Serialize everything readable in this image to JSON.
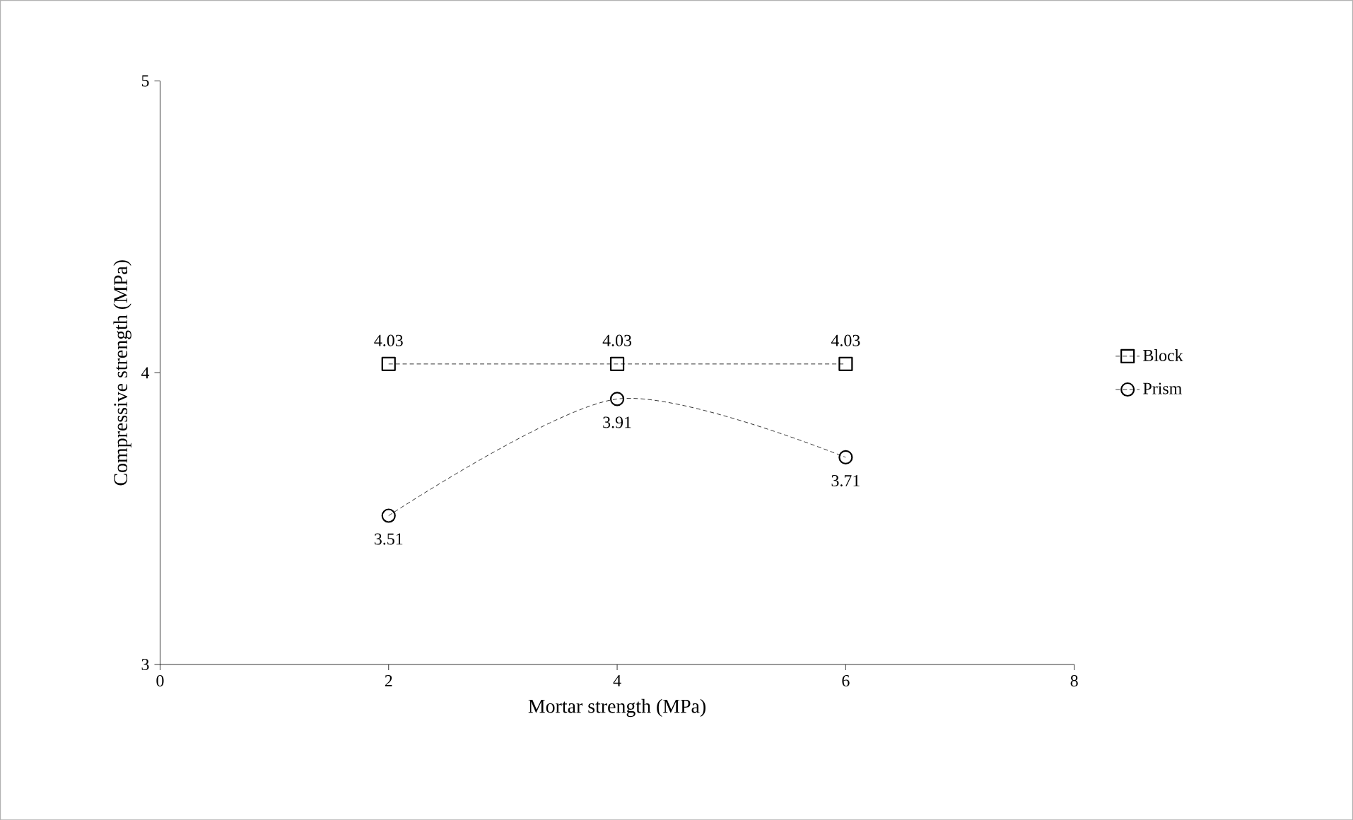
{
  "chart_data": {
    "type": "line",
    "xlabel": "Mortar strength (MPa)",
    "ylabel": "Compressive strength (MPa)",
    "x": [
      2,
      4,
      6
    ],
    "series": [
      {
        "name": "Block",
        "color": "#000000",
        "marker": "square",
        "values": [
          4.03,
          4.03,
          4.03
        ]
      },
      {
        "name": "Prism",
        "color": "#000000",
        "marker": "circle",
        "values": [
          3.51,
          3.91,
          3.71
        ]
      }
    ],
    "xlim": [
      0,
      8
    ],
    "xticks": [
      0,
      2,
      4,
      6,
      8
    ],
    "ylim": [
      3,
      5
    ],
    "yticks": [
      3,
      4,
      5
    ],
    "data_labels": true,
    "legend": "right",
    "line_style": "dashed"
  }
}
